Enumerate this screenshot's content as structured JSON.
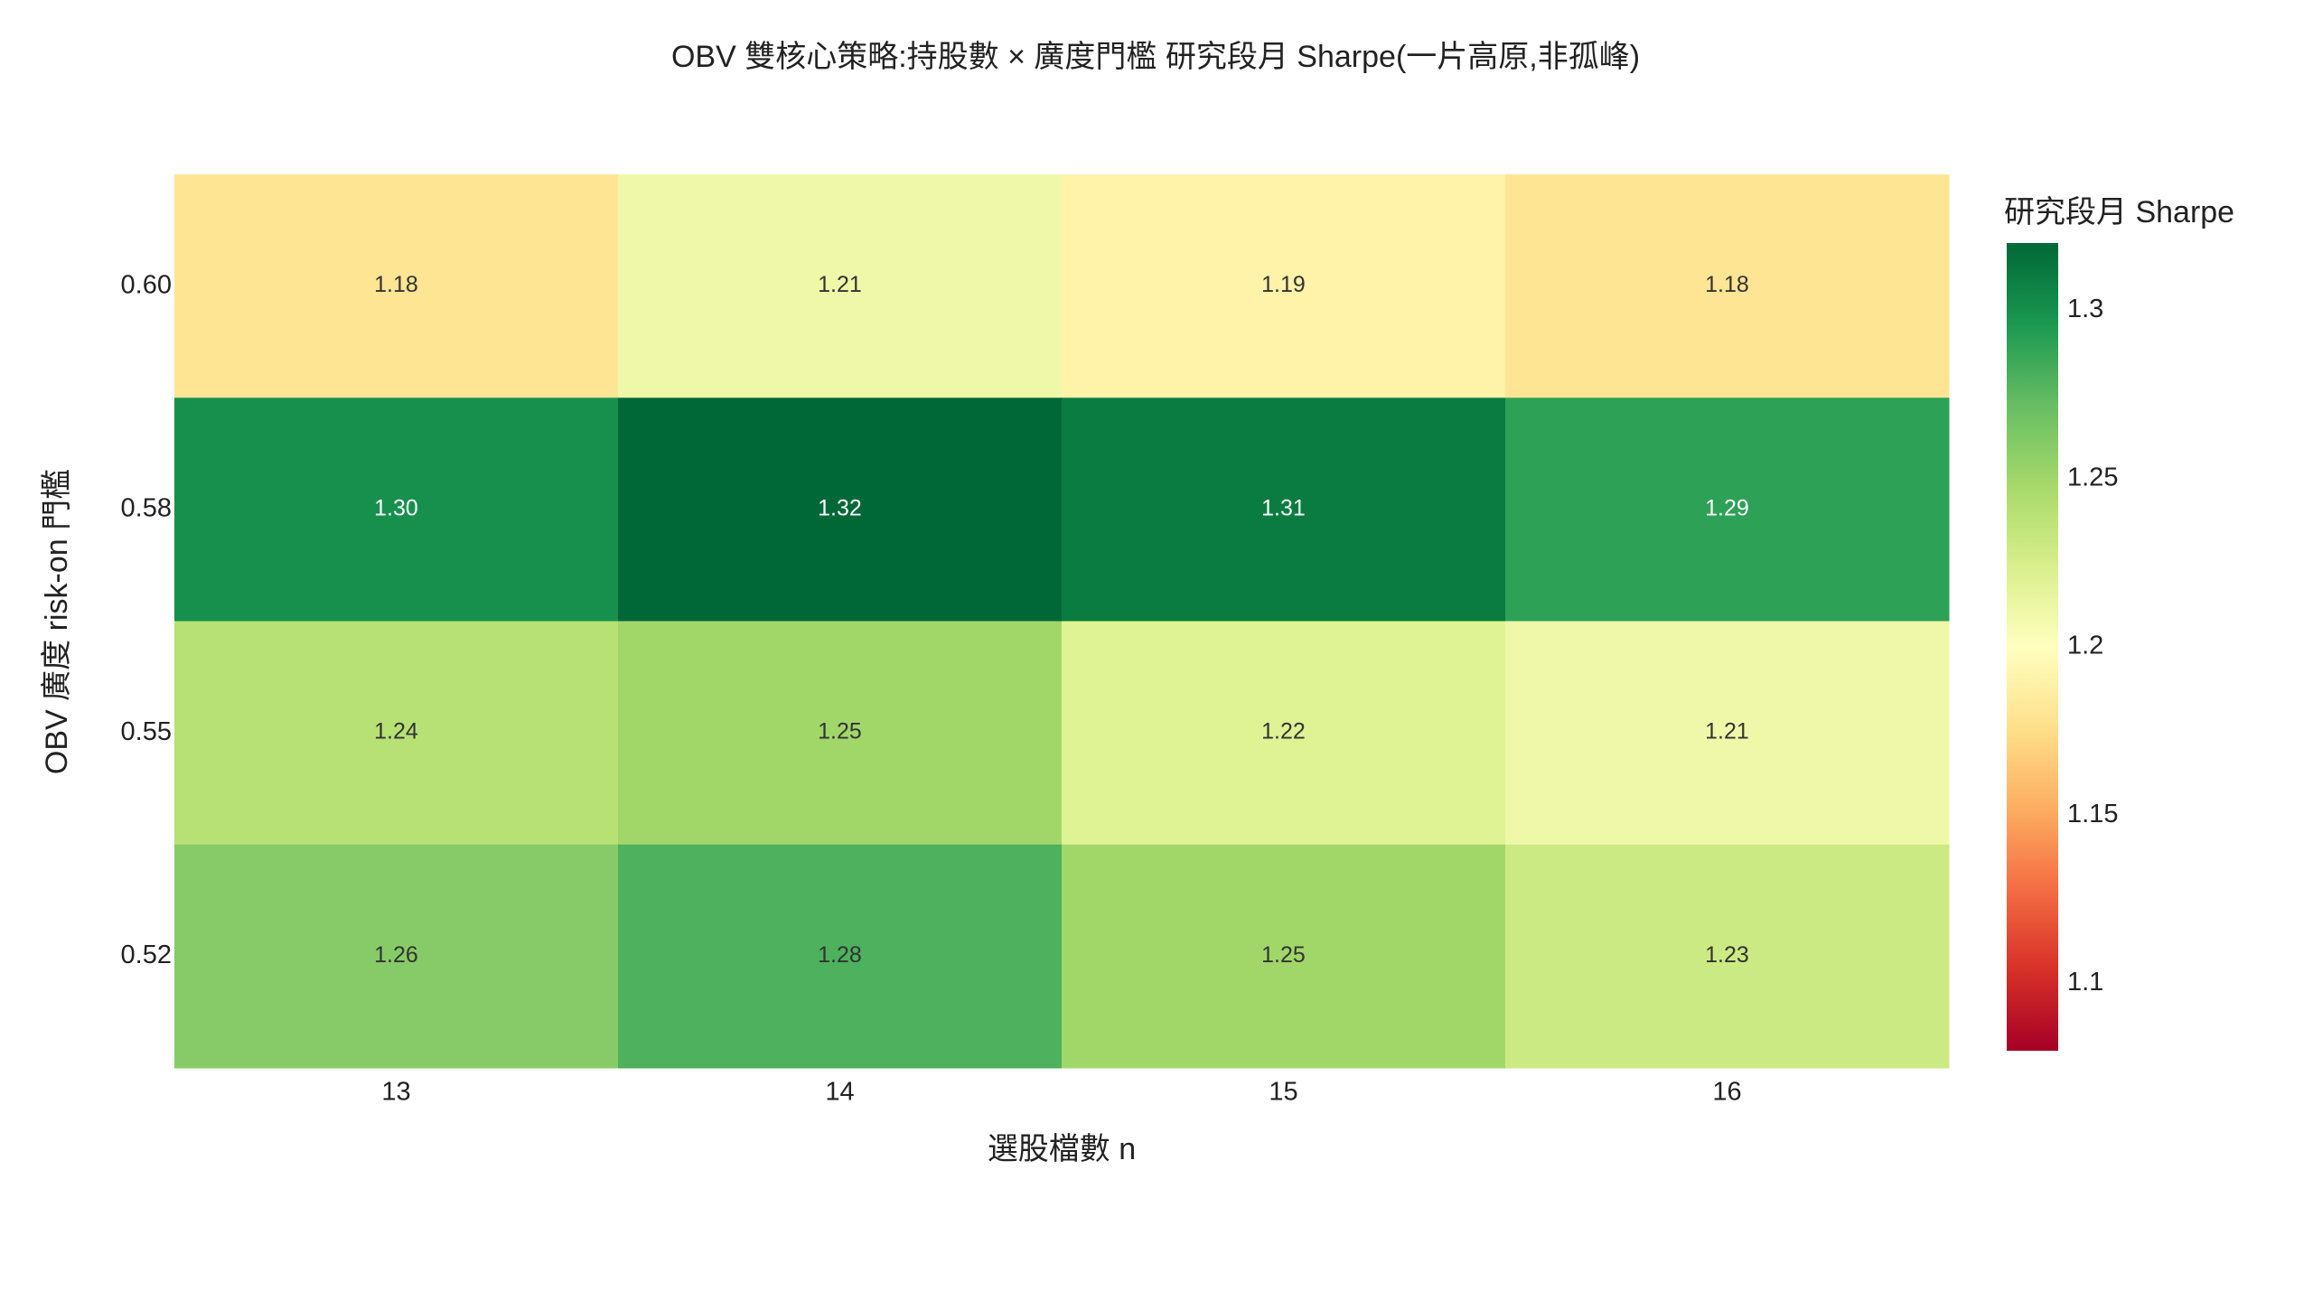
{
  "chart_data": {
    "type": "heatmap",
    "title": "OBV 雙核心策略:持股數 × 廣度門檻 研究段月 Sharpe(一片高原,非孤峰)",
    "x_label": "選股檔數 n",
    "y_label": "OBV 廣度 risk-on 門檻",
    "x_categories": [
      "13",
      "14",
      "15",
      "16"
    ],
    "y_categories": [
      "0.60",
      "0.58",
      "0.55",
      "0.52"
    ],
    "values": [
      [
        1.18,
        1.21,
        1.19,
        1.18
      ],
      [
        1.3,
        1.32,
        1.31,
        1.29
      ],
      [
        1.24,
        1.25,
        1.22,
        1.21
      ],
      [
        1.26,
        1.28,
        1.25,
        1.23
      ]
    ],
    "value_labels": [
      [
        "1.18",
        "1.21",
        "1.19",
        "1.18"
      ],
      [
        "1.30",
        "1.32",
        "1.31",
        "1.29"
      ],
      [
        "1.24",
        "1.25",
        "1.22",
        "1.21"
      ],
      [
        "1.26",
        "1.28",
        "1.25",
        "1.23"
      ]
    ],
    "colorbar_title": "研究段月 Sharpe",
    "zlim": [
      1.08,
      1.32
    ],
    "zticks": [
      1.1,
      1.15,
      1.2,
      1.25,
      1.3
    ],
    "colorscale": [
      "#a50026",
      "#d73027",
      "#f46d43",
      "#fdae61",
      "#fee08b",
      "#ffffbf",
      "#d9ef8b",
      "#a6d96a",
      "#66bd63",
      "#1a9850",
      "#006837"
    ]
  }
}
